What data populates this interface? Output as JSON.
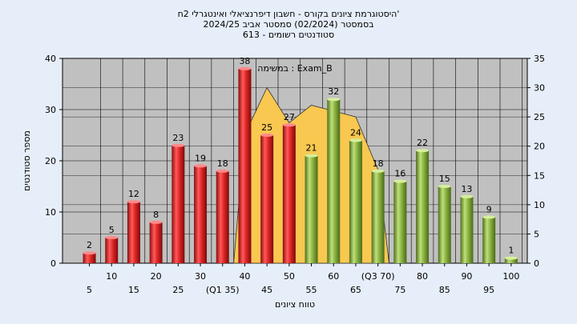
{
  "chart_data": {
    "type": "bar",
    "title_lines": [
      "היסטוגרמת ציונים בקורס - חשבון דיפרנציאלי ואינטגרלי 2ח'",
      "בסמסטר  (02/2024)  סמסטר אביב 2024/25",
      "סטודנטים רשומים - 613"
    ],
    "annotation": "במשימה : Exam_B",
    "xlabel": "טווח ציונים",
    "ylabel": "מספר סטודנטים",
    "x_tick_labels": [
      "5",
      "10",
      "15",
      "20",
      "25",
      "30",
      "(Q1 35)",
      "40",
      "45",
      "50",
      "55",
      "60",
      "65",
      "(Q3 70)",
      "75",
      "80",
      "85",
      "90",
      "95",
      "100"
    ],
    "categories": [
      5,
      10,
      15,
      20,
      25,
      30,
      35,
      40,
      45,
      50,
      55,
      60,
      65,
      70,
      75,
      80,
      85,
      90,
      95,
      100
    ],
    "values": [
      2,
      5,
      12,
      8,
      23,
      19,
      18,
      38,
      25,
      27,
      21,
      32,
      24,
      18,
      16,
      22,
      15,
      13,
      9,
      1
    ],
    "bar_colors": [
      "#dd2222",
      "#dd2222",
      "#dd2222",
      "#dd2222",
      "#dd2222",
      "#dd2222",
      "#dd2222",
      "#dd2222",
      "#dd2222",
      "#dd2222",
      "#88b040",
      "#88b040",
      "#88b040",
      "#88b040",
      "#88b040",
      "#88b040",
      "#88b040",
      "#88b040",
      "#88b040",
      "#88b040"
    ],
    "ylim_left": [
      0,
      40
    ],
    "yticks_left": [
      0,
      10,
      20,
      30,
      40
    ],
    "ylim_right": [
      0,
      35
    ],
    "yticks_right": [
      0,
      5,
      10,
      15,
      20,
      25,
      30,
      35
    ],
    "area_x": [
      37.5,
      40,
      45,
      50,
      55,
      60,
      65,
      70,
      72.5
    ],
    "area_y": [
      0,
      22,
      30,
      24,
      27,
      26,
      25,
      16,
      0
    ],
    "area_color": "#f8c850",
    "plot_background": "#c0c0c0",
    "grid": true
  }
}
